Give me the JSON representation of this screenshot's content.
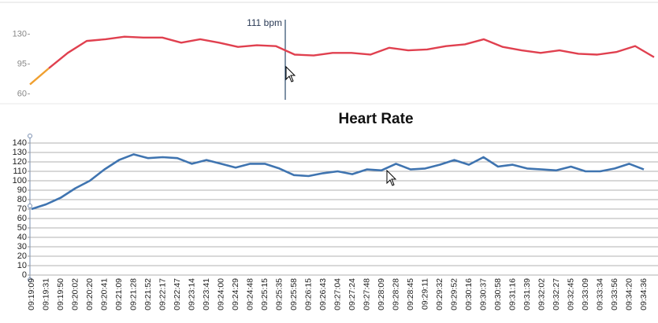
{
  "chart_data": [
    {
      "type": "line",
      "annotation": "111 bpm",
      "series": [
        {
          "color": "#f0a030",
          "values": [
            71,
            90,
            null,
            null,
            null,
            null,
            null,
            null,
            null,
            null,
            null,
            null,
            null,
            null,
            null,
            null,
            null,
            null,
            null,
            null,
            null,
            null,
            null,
            null,
            null,
            null,
            null,
            null,
            null,
            null,
            null,
            null,
            null,
            null
          ]
        },
        {
          "color": "#e0404f",
          "values": [
            null,
            90,
            108,
            122,
            124,
            127,
            126,
            126,
            120,
            124,
            120,
            115,
            117,
            116,
            106,
            105,
            108,
            108,
            106,
            114,
            111,
            112,
            116,
            118,
            124,
            115,
            111,
            108,
            111,
            107,
            106,
            109,
            116,
            103
          ]
        }
      ],
      "ylim": [
        53,
        147
      ],
      "yticks": [
        60,
        95,
        130
      ]
    },
    {
      "type": "line",
      "title": "Heart Rate",
      "categories": [
        "09:19:09",
        "09:19:31",
        "09:19:50",
        "09:20:02",
        "09:20:20",
        "09:20:41",
        "09:21:09",
        "09:21:28",
        "09:21:52",
        "09:22:17",
        "09:22:47",
        "09:23:14",
        "09:23:41",
        "09:24:00",
        "09:24:29",
        "09:24:48",
        "09:25:15",
        "09:25:35",
        "09:25:58",
        "09:26:15",
        "09:26:43",
        "09:27:04",
        "09:27:24",
        "09:27:48",
        "09:28:09",
        "09:28:28",
        "09:28:45",
        "09:29:11",
        "09:29:32",
        "09:29:52",
        "09:30:16",
        "09:30:37",
        "09:30:58",
        "09:31:16",
        "09:31:39",
        "09:32:02",
        "09:32:27",
        "09:32:45",
        "09:33:09",
        "09:33:34",
        "09:33:56",
        "09:34:20",
        "09:34:36"
      ],
      "series": [
        {
          "color": "#3f74b0",
          "values": [
            70,
            75,
            82,
            92,
            100,
            112,
            122,
            128,
            124,
            125,
            124,
            118,
            122,
            118,
            114,
            118,
            118,
            113,
            106,
            105,
            108,
            110,
            107,
            112,
            111,
            118,
            112,
            113,
            117,
            122,
            117,
            125,
            115,
            117,
            113,
            112,
            111,
            115,
            110,
            110,
            113,
            118,
            112
          ]
        }
      ],
      "ylim": [
        0,
        140
      ],
      "yticks": [
        0,
        10,
        20,
        30,
        40,
        50,
        60,
        70,
        80,
        90,
        100,
        110,
        120,
        130,
        140
      ],
      "grid": true
    }
  ]
}
